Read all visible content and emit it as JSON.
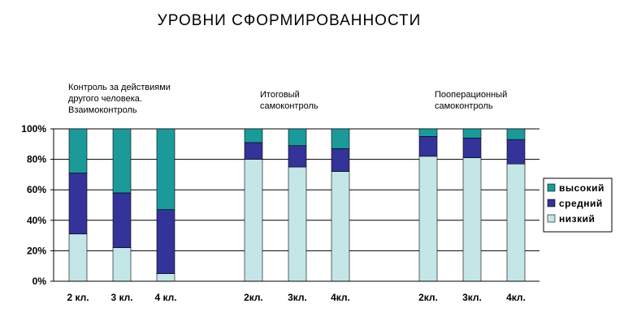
{
  "chart_data": {
    "type": "bar",
    "stacked": true,
    "title": "УРОВНИ    СФОРМИРОВАННОСТИ",
    "ylim": [
      0,
      100
    ],
    "yticks": [
      "0%",
      "20%",
      "40%",
      "60%",
      "80%",
      "100%"
    ],
    "grid": true,
    "legend_position": "right",
    "groups": [
      {
        "label_lines": [
          "Контроль за действиями",
          "другого человека.",
          "Взаимоконтроль"
        ]
      },
      {
        "label_lines": [
          "Итоговый",
          "самоконтроль"
        ]
      },
      {
        "label_lines": [
          "Пооперационный",
          "самоконтроль"
        ]
      }
    ],
    "categories": [
      "2 кл.",
      "3 кл.",
      "4 кл.",
      "2кл.",
      "3кл.",
      "4кл.",
      "2кл.",
      "3кл.",
      "4кл."
    ],
    "category_group": [
      0,
      0,
      0,
      1,
      1,
      1,
      2,
      2,
      2
    ],
    "series": [
      {
        "name": "низкий",
        "color": "#c4e6e6",
        "values": [
          31,
          22,
          5,
          80,
          75,
          72,
          82,
          81,
          77
        ]
      },
      {
        "name": "средний",
        "color": "#333399",
        "values": [
          40,
          36,
          42,
          11,
          14,
          15,
          13,
          13,
          16
        ]
      },
      {
        "name": "высокий",
        "color": "#1c9a9a",
        "values": [
          29,
          42,
          53,
          9,
          11,
          13,
          5,
          6,
          7
        ]
      }
    ],
    "legend_order": [
      "высокий",
      "средний",
      "низкий"
    ]
  }
}
